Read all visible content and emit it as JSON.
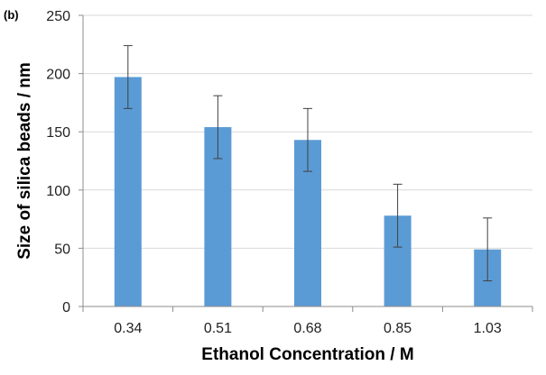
{
  "panel_label": "(b)",
  "chart_data": {
    "type": "bar",
    "title": "",
    "xlabel": "Ethanol Concentration / M",
    "ylabel": "Size of silica beads / nm",
    "categories": [
      "0.34",
      "0.51",
      "0.68",
      "0.85",
      "1.03"
    ],
    "values": [
      197,
      154,
      143,
      78,
      49
    ],
    "error": [
      27,
      27,
      27,
      27,
      27
    ],
    "ylim": [
      0,
      250
    ],
    "yticks": [
      0,
      50,
      100,
      150,
      200,
      250
    ],
    "grid": true,
    "legend": "none",
    "bar_color": "#5b9bd5",
    "grid_color": "#d9d9d9",
    "error_color": "#404040"
  }
}
